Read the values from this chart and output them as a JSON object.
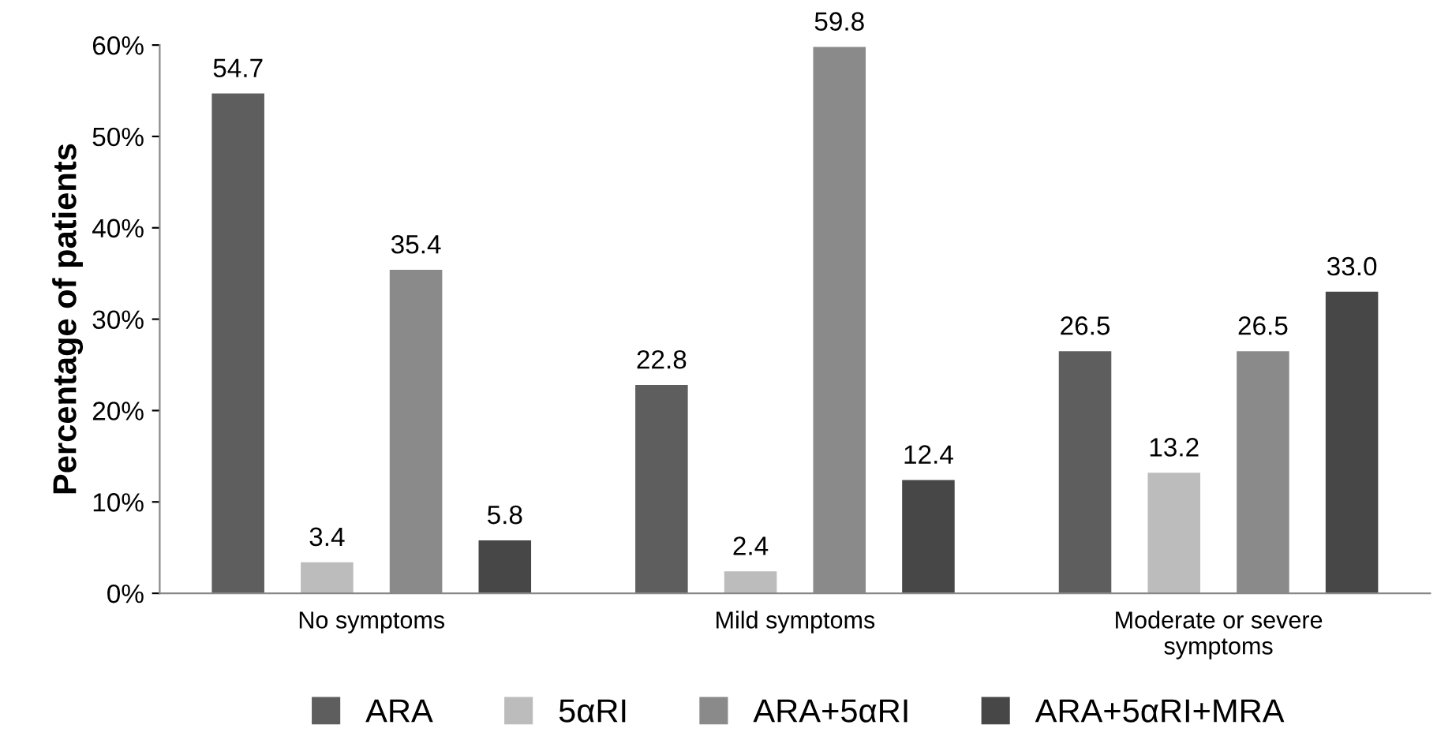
{
  "chart_data": {
    "type": "bar",
    "ylabel": "Percentage of patients",
    "categories": [
      "No symptoms",
      "Mild symptoms",
      "Moderate or severe\nsymptoms"
    ],
    "series": [
      {
        "name": "ARA",
        "color": "#5e5e5e",
        "values": [
          54.7,
          22.8,
          26.5
        ],
        "value_labels": [
          "54.7",
          "22.8",
          "26.5"
        ]
      },
      {
        "name": "5αRI",
        "color": "#bcbcbc",
        "values": [
          3.4,
          2.4,
          13.2
        ],
        "value_labels": [
          "3.4",
          "2.4",
          "13.2"
        ]
      },
      {
        "name": "ARA+5αRI",
        "color": "#8a8a8a",
        "values": [
          35.4,
          59.8,
          26.5
        ],
        "value_labels": [
          "35.4",
          "59.8",
          "26.5"
        ]
      },
      {
        "name": "ARA+5αRI+MRA",
        "color": "#474747",
        "values": [
          5.8,
          12.4,
          33.0
        ],
        "value_labels": [
          "5.8",
          "12.4",
          "33.0"
        ]
      }
    ],
    "ylim": [
      0,
      60
    ],
    "yticks": [
      {
        "value": 0,
        "label": "0%"
      },
      {
        "value": 10,
        "label": "10%"
      },
      {
        "value": 20,
        "label": "20%"
      },
      {
        "value": 30,
        "label": "30%"
      },
      {
        "value": 40,
        "label": "40%"
      },
      {
        "value": 50,
        "label": "50%"
      },
      {
        "value": 60,
        "label": "60%"
      }
    ],
    "grid": false,
    "legend": "bottom"
  }
}
